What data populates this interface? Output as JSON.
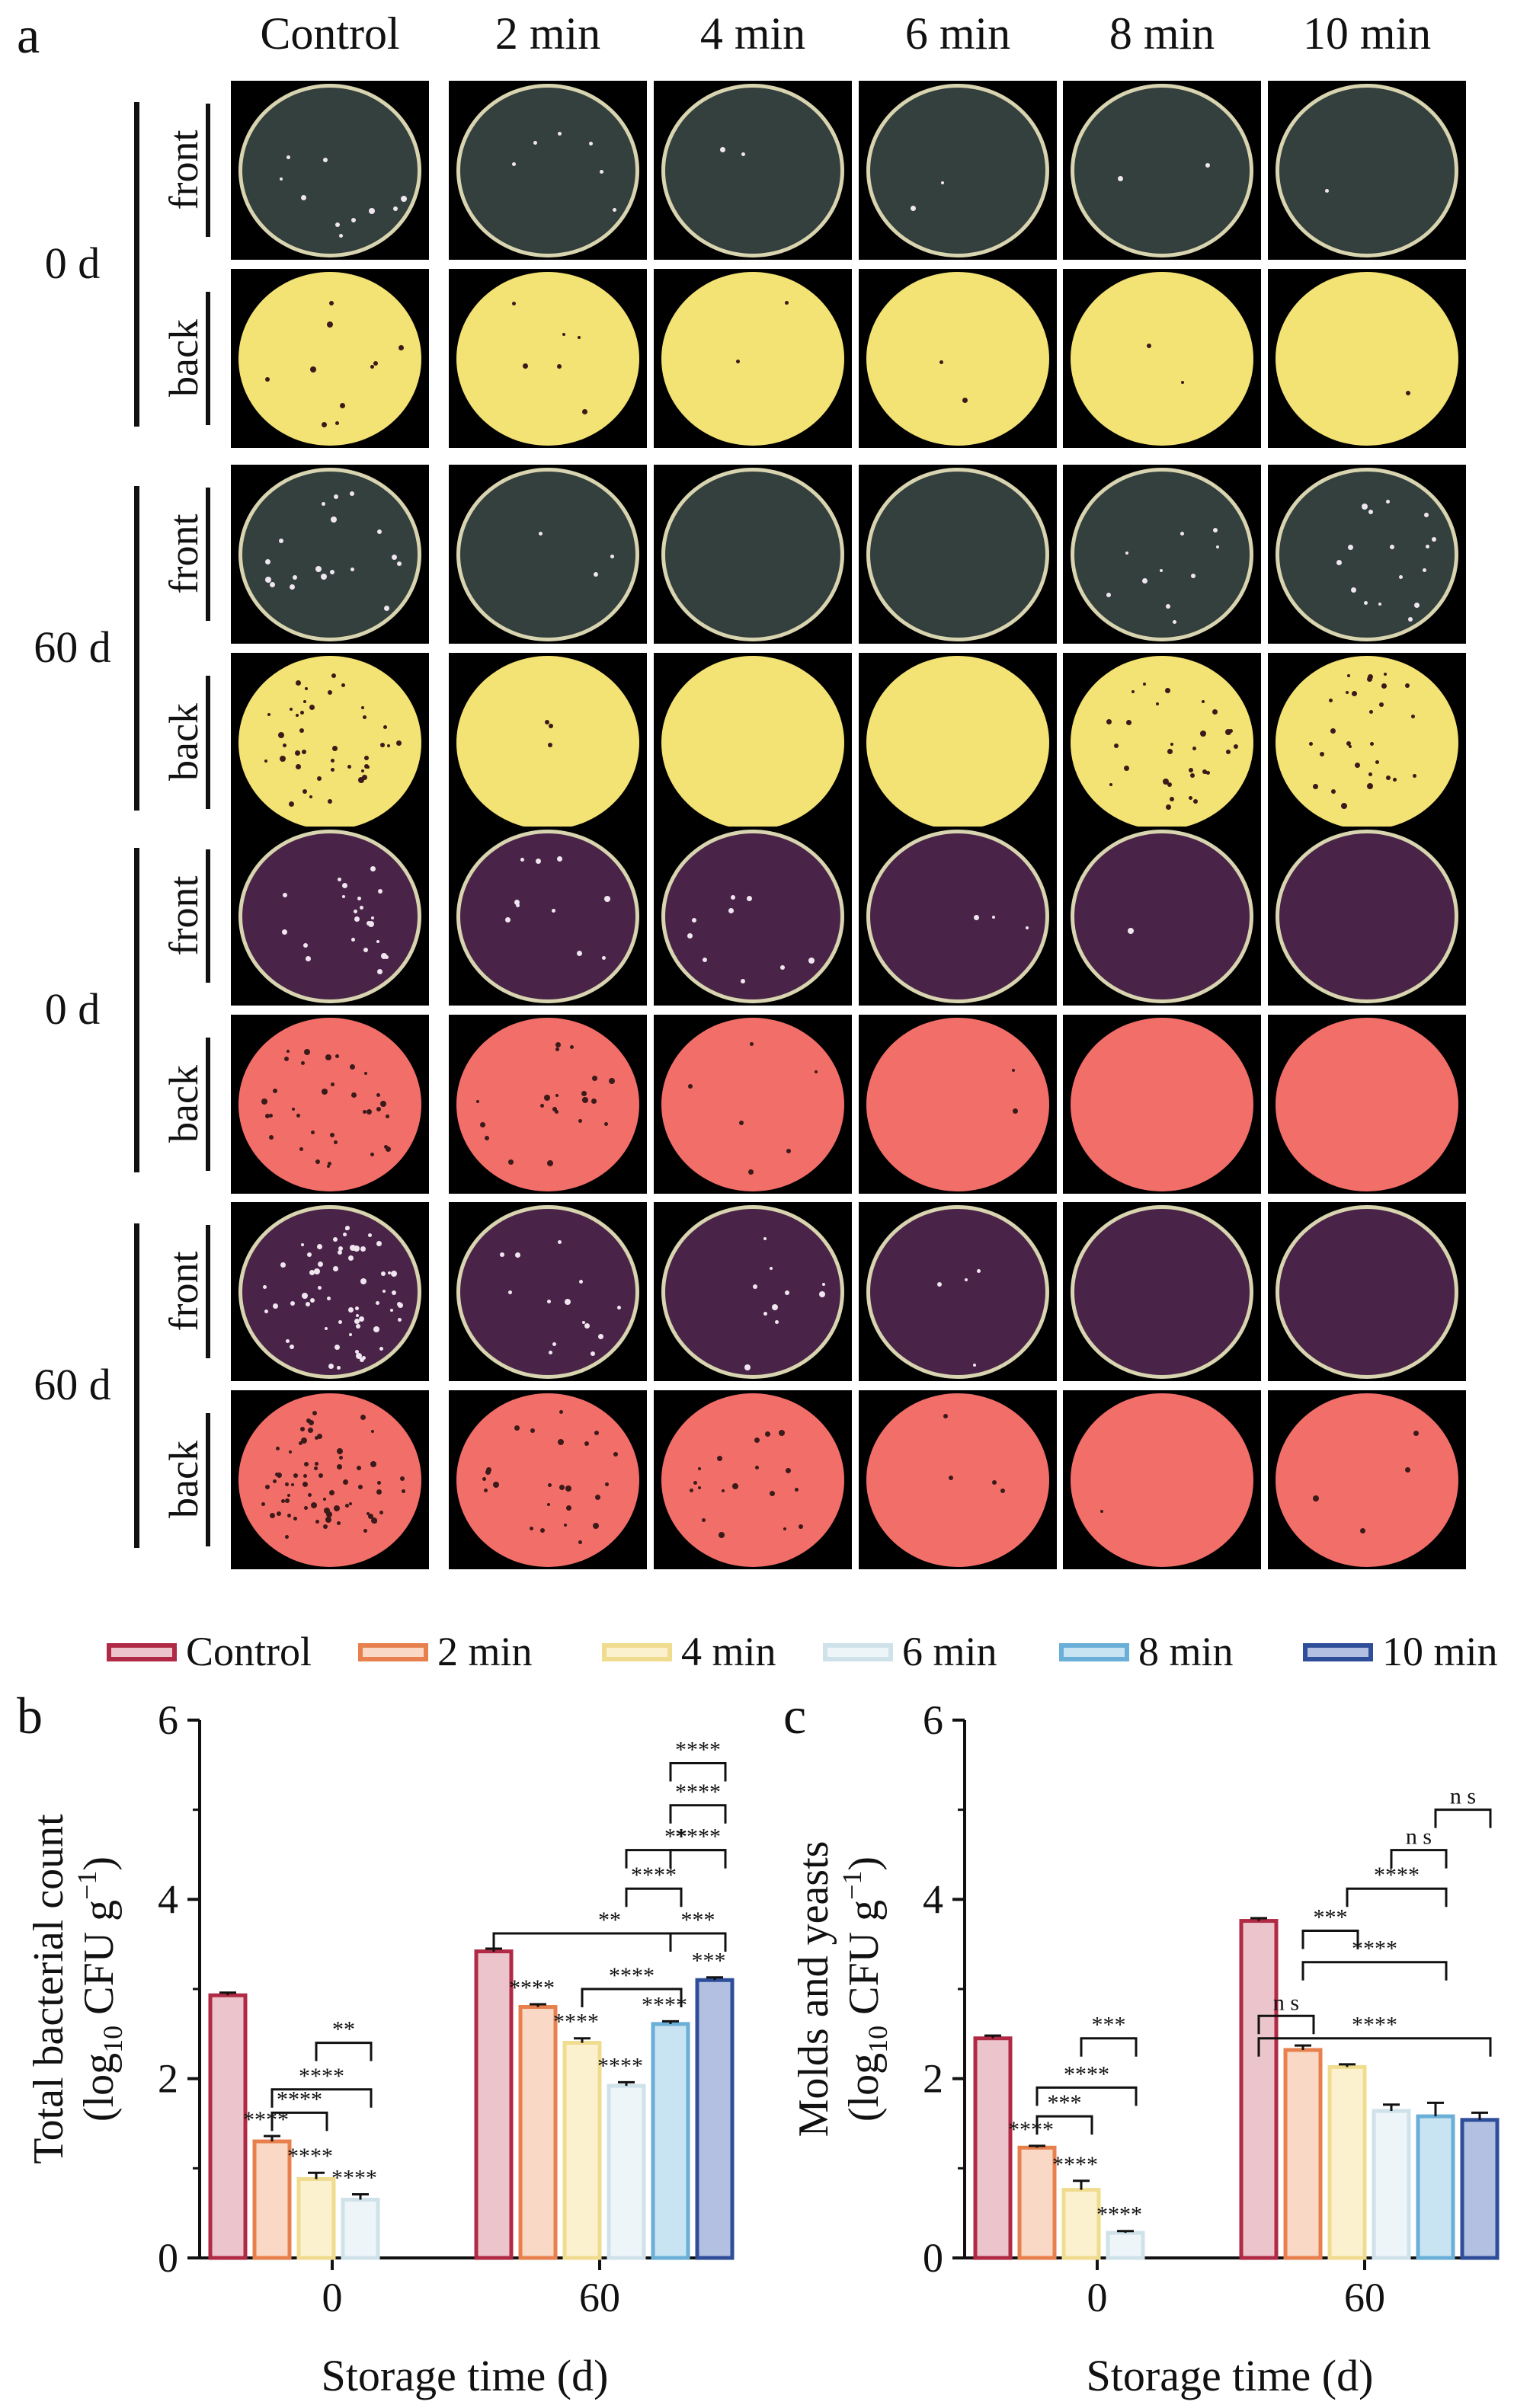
{
  "panels": {
    "a": "a",
    "b": "b",
    "c": "c"
  },
  "plate_grid": {
    "columns": [
      "Control",
      "2 min",
      "4 min",
      "6 min",
      "8 min",
      "10 min"
    ],
    "groups": [
      {
        "day": "0 d",
        "medium": "yellow"
      },
      {
        "day": "60 d",
        "medium": "yellow"
      },
      {
        "day": "0 d",
        "medium": "pink"
      },
      {
        "day": "60 d",
        "medium": "pink"
      }
    ],
    "sides": [
      "front",
      "back"
    ],
    "colors": {
      "yellow_front": "#34403e",
      "yellow_back": "#f3e274",
      "pink_front": "#4a2448",
      "pink_back": "#f26e68",
      "colony_light": "#f0e6f0",
      "colony_dark": "#3a1a1a"
    }
  },
  "legend": [
    {
      "label": "Control",
      "stroke": "#b02a45",
      "fill": "#ecc4cb"
    },
    {
      "label": "2 min",
      "stroke": "#e8804d",
      "fill": "#f9d8c5"
    },
    {
      "label": "4 min",
      "stroke": "#f0dc8e",
      "fill": "#fbf1cf"
    },
    {
      "label": "6 min",
      "stroke": "#cfe2ea",
      "fill": "#eef5f8"
    },
    {
      "label": "8 min",
      "stroke": "#6aafd7",
      "fill": "#c8e3f2"
    },
    {
      "label": "10 min",
      "stroke": "#2f4e9a",
      "fill": "#b3c0e2"
    }
  ],
  "chart_data": [
    {
      "type": "bar",
      "panel": "b",
      "ylabel_line1": "Total bacterial count",
      "ylabel_line2_prefix": "(log",
      "ylabel_sub": "10",
      "ylabel_line2_mid": " CFU g",
      "ylabel_sup": "−1",
      "ylabel_line2_suffix": ")",
      "xlabel": "Storage time (d)",
      "ylim": [
        0,
        6
      ],
      "yticks": [
        "0",
        "2",
        "4",
        "6"
      ],
      "categories": [
        "0",
        "60"
      ],
      "series": [
        {
          "name": "Control",
          "values": [
            2.93,
            3.42
          ],
          "errors": [
            0.03,
            0.03
          ]
        },
        {
          "name": "2 min",
          "values": [
            1.3,
            2.8
          ],
          "errors": [
            0.06,
            0.03
          ]
        },
        {
          "name": "4 min",
          "values": [
            0.88,
            2.4
          ],
          "errors": [
            0.07,
            0.05
          ]
        },
        {
          "name": "6 min",
          "values": [
            0.65,
            1.92
          ],
          "errors": [
            0.06,
            0.04
          ]
        },
        {
          "name": "8 min",
          "values": [
            null,
            2.61
          ],
          "errors": [
            null,
            0.03
          ]
        },
        {
          "name": "10 min",
          "values": [
            null,
            3.1
          ],
          "errors": [
            null,
            0.03
          ]
        }
      ],
      "bar_labels": [
        {
          "text": "****",
          "cat": 0,
          "series": 1
        },
        {
          "text": "****",
          "cat": 0,
          "series": 2
        },
        {
          "text": "****",
          "cat": 0,
          "series": 3
        },
        {
          "text": "****",
          "cat": 1,
          "series": 1
        },
        {
          "text": "****",
          "cat": 1,
          "series": 2
        },
        {
          "text": "****",
          "cat": 1,
          "series": 3
        },
        {
          "text": "****",
          "cat": 1,
          "series": 4
        },
        {
          "text": "***",
          "cat": 1,
          "series": 5
        }
      ],
      "brackets": [
        {
          "text": "****",
          "from": 1,
          "to": 2,
          "y": 1.62
        },
        {
          "text": "****",
          "from": 1,
          "to": 3,
          "y": 1.88
        },
        {
          "text": "**",
          "from": 2,
          "to": 3,
          "y": 2.4
        },
        {
          "text": "****",
          "from": 2,
          "to": 4,
          "y": 3.0
        },
        {
          "text": "**",
          "from": 0,
          "to": 5,
          "y": 3.62
        },
        {
          "text": "***",
          "from": 4,
          "to": 5,
          "y": 3.62
        },
        {
          "text": "****",
          "from": 3,
          "to": 4,
          "y": 4.12
        },
        {
          "text": "**",
          "from": 3,
          "to": 5,
          "y": 4.55
        },
        {
          "text": "****",
          "from": 4,
          "to": 5,
          "y": 4.55
        },
        {
          "text": "****",
          "from": 4,
          "to": 5,
          "y": 5.05
        },
        {
          "text": "****",
          "from": 4,
          "to": 5,
          "y": 5.52
        }
      ]
    },
    {
      "type": "bar",
      "panel": "c",
      "ylabel_line1": "Molds and yeasts",
      "ylabel_line2_prefix": "(log",
      "ylabel_sub": "10",
      "ylabel_line2_mid": " CFU g",
      "ylabel_sup": "−1",
      "ylabel_line2_suffix": ")",
      "xlabel": "Storage time (d)",
      "ylim": [
        0,
        6
      ],
      "yticks": [
        "0",
        "2",
        "4",
        "6"
      ],
      "categories": [
        "0",
        "60"
      ],
      "series": [
        {
          "name": "Control",
          "values": [
            2.45,
            3.76
          ],
          "errors": [
            0.03,
            0.03
          ]
        },
        {
          "name": "2 min",
          "values": [
            1.23,
            2.32
          ],
          "errors": [
            0.02,
            0.05
          ]
        },
        {
          "name": "4 min",
          "values": [
            0.76,
            2.13
          ],
          "errors": [
            0.1,
            0.03
          ]
        },
        {
          "name": "6 min",
          "values": [
            0.28,
            1.64
          ],
          "errors": [
            0.02,
            0.07
          ]
        },
        {
          "name": "8 min",
          "values": [
            null,
            1.58
          ],
          "errors": [
            null,
            0.15
          ]
        },
        {
          "name": "10 min",
          "values": [
            null,
            1.54
          ],
          "errors": [
            null,
            0.08
          ]
        }
      ],
      "bar_labels": [
        {
          "text": "****",
          "cat": 0,
          "series": 1
        },
        {
          "text": "****",
          "cat": 0,
          "series": 2
        },
        {
          "text": "****",
          "cat": 0,
          "series": 3
        }
      ],
      "brackets": [
        {
          "text": "***",
          "from": 1,
          "to": 2,
          "y": 1.58
        },
        {
          "text": "****",
          "from": 1,
          "to": 3,
          "y": 1.9
        },
        {
          "text": "***",
          "from": 2,
          "to": 3,
          "y": 2.45
        },
        {
          "text": "n s",
          "from": 0,
          "to": 1,
          "y": 2.7
        },
        {
          "text": "****",
          "from": 0,
          "to": 5,
          "y": 2.45
        },
        {
          "text": "****",
          "from": 1,
          "to": 4,
          "y": 3.3
        },
        {
          "text": "***",
          "from": 1,
          "to": 2,
          "y": 3.65
        },
        {
          "text": "****",
          "from": 2,
          "to": 4,
          "y": 4.12
        },
        {
          "text": "n s",
          "from": 3,
          "to": 4,
          "y": 4.55
        },
        {
          "text": "n s",
          "from": 4,
          "to": 5,
          "y": 5.0
        }
      ]
    }
  ]
}
